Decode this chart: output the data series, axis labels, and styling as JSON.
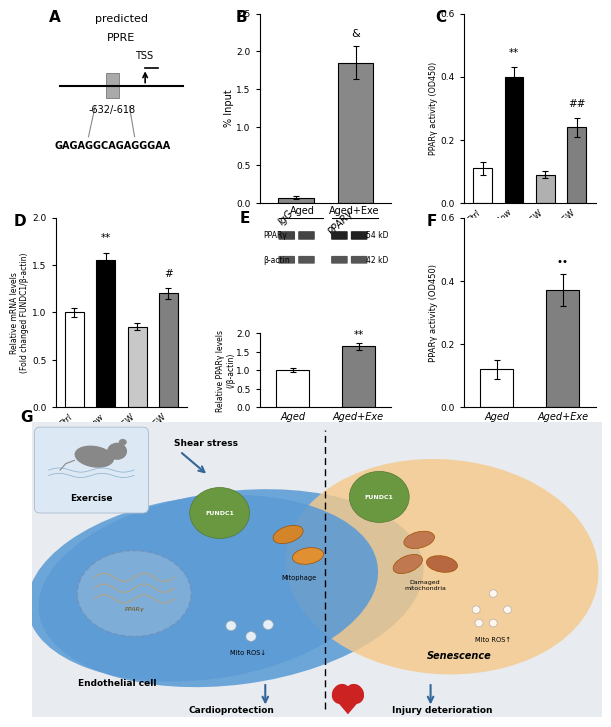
{
  "panel_A": {
    "label": "A",
    "title1": "predicted",
    "title2": "PPRE",
    "tss_label": "TSS",
    "position_label": "-632/-618",
    "sequence": "GAGAGGCAGAGGGAA"
  },
  "panel_B": {
    "label": "B",
    "categories": [
      "IgG",
      "PPARγ"
    ],
    "values": [
      0.07,
      1.85
    ],
    "errors": [
      0.02,
      0.22
    ],
    "colors": [
      "#888888",
      "#888888"
    ],
    "ylabel": "% Input",
    "ylim": [
      0,
      2.5
    ],
    "yticks": [
      0.0,
      0.5,
      1.0,
      1.5,
      2.0,
      2.5
    ],
    "significance": {
      "PPARγ": "&"
    }
  },
  "panel_C": {
    "label": "C",
    "categories": [
      "Ctrl",
      "Laminar flow",
      "Ctrl+GW",
      "Laminar flow+GW"
    ],
    "values": [
      0.11,
      0.4,
      0.09,
      0.24
    ],
    "errors": [
      0.02,
      0.03,
      0.01,
      0.03
    ],
    "colors": [
      "#ffffff",
      "#000000",
      "#b0b0b0",
      "#808080"
    ],
    "edge_colors": [
      "#000000",
      "#000000",
      "#000000",
      "#000000"
    ],
    "ylabel": "PPARγ activity (OD450)",
    "ylim": [
      0,
      0.6
    ],
    "yticks": [
      0.0,
      0.2,
      0.4,
      0.6
    ],
    "significance": {
      "Laminar flow": "**",
      "Laminar flow+GW": "##"
    }
  },
  "panel_D": {
    "label": "D",
    "categories": [
      "Ctrl",
      "Laminar flow",
      "Ctrl+GW",
      "Laminar flow+GW"
    ],
    "values": [
      1.0,
      1.55,
      0.85,
      1.2
    ],
    "errors": [
      0.05,
      0.08,
      0.04,
      0.06
    ],
    "colors": [
      "#ffffff",
      "#000000",
      "#c8c8c8",
      "#808080"
    ],
    "edge_colors": [
      "#000000",
      "#000000",
      "#000000",
      "#000000"
    ],
    "ylabel": "Relative mRNA levels\n(Fold changed FUNDC1/β-actin)",
    "ylim": [
      0,
      2.0
    ],
    "yticks": [
      0.0,
      0.5,
      1.0,
      1.5,
      2.0
    ],
    "significance": {
      "Laminar flow": "**",
      "Laminar flow+GW": "#"
    }
  },
  "panel_E": {
    "label": "E",
    "bar_categories": [
      "Aged",
      "Aged+Exe"
    ],
    "bar_values": [
      1.0,
      1.65
    ],
    "bar_errors": [
      0.05,
      0.1
    ],
    "bar_colors": [
      "#ffffff",
      "#808080"
    ],
    "bar_edge_colors": [
      "#000000",
      "#000000"
    ],
    "ylabel": "Relative PPARγ levels\n(/β-actin)",
    "ylim": [
      0,
      2.0
    ],
    "yticks": [
      0.0,
      0.5,
      1.0,
      1.5,
      2.0
    ],
    "significance": {
      "Aged+Exe": "**"
    }
  },
  "panel_F": {
    "label": "F",
    "categories": [
      "Aged",
      "Aged+Exe"
    ],
    "values": [
      0.12,
      0.37
    ],
    "errors": [
      0.03,
      0.05
    ],
    "colors": [
      "#ffffff",
      "#808080"
    ],
    "edge_colors": [
      "#000000",
      "#000000"
    ],
    "ylabel": "PPARγ activity (OD450)",
    "ylim": [
      0,
      0.6
    ],
    "yticks": [
      0.0,
      0.2,
      0.4,
      0.6
    ],
    "significance": {
      "Aged+Exe": "••"
    }
  },
  "panel_G": {
    "label": "G",
    "bg_color": "#e8ecf0",
    "left_cell_color": "#6ba3d6",
    "right_cell_color": "#f0c8a0"
  }
}
